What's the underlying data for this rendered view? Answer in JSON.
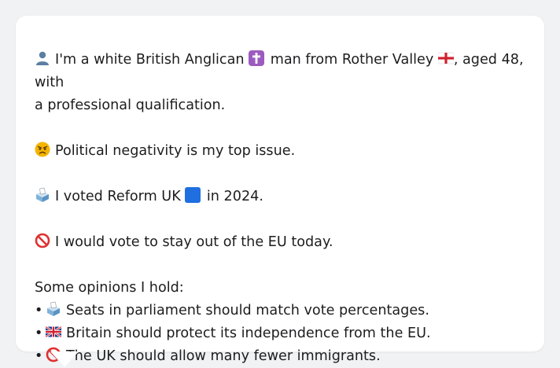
{
  "profile": {
    "intro_text": "I'm a white British Anglican",
    "intro_mid": "man from Rother Valley",
    "intro_end": ", aged 48, with",
    "intro_line2": "a professional qualification.",
    "top_issue": "Political negativity is my top issue.",
    "vote_before": "I voted Reform UK",
    "vote_after": "in 2024.",
    "eu_stance": "I would vote to stay out of the EU today.",
    "opinions_header": "Some opinions I hold:",
    "opinions": [
      "Seats in parliament should match vote percentages.",
      "Britain should protect its independence from the EU.",
      "The UK should allow many fewer immigrants."
    ],
    "bullet": "•"
  },
  "icons": {
    "person": "person-silhouette",
    "religion": "latin-cross",
    "region": "england-flag",
    "issue": "angry-face",
    "vote": "ballot-box",
    "party": "blue-square",
    "eu": "no-entry",
    "opinion_1": "ballot-box",
    "opinion_2": "uk-flag",
    "opinion_3": "no-entry"
  },
  "colors": {
    "background": "#f1f2f4",
    "card": "#ffffff",
    "text": "#1d1d1f",
    "party_blue": "#1f6fe0"
  }
}
